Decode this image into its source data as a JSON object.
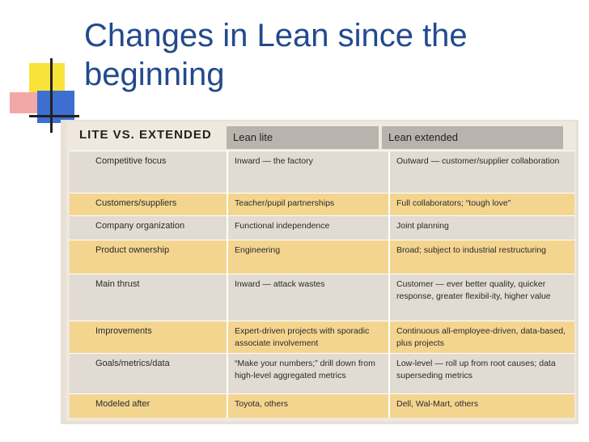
{
  "slide": {
    "title_line1": "Changes in Lean since the",
    "title_line2": "beginning"
  },
  "table": {
    "header": {
      "label": "LITE VS. EXTENDED",
      "col_lite": "Lean lite",
      "col_extended": "Lean extended"
    },
    "rows": [
      {
        "label": "Competitive focus",
        "lite": "Inward — the factory",
        "extended": "Outward — customer/supplier collaboration"
      },
      {
        "label": "Customers/suppliers",
        "lite": "Teacher/pupil partnerships",
        "extended": "Full collaborators; “tough love”"
      },
      {
        "label": "Company organization",
        "lite": "Functional independence",
        "extended": "Joint planning"
      },
      {
        "label": "Product ownership",
        "lite": "Engineering",
        "extended": "Broad; subject to industrial restructuring"
      },
      {
        "label": "Main thrust",
        "lite": "Inward — attack wastes",
        "extended": "Customer — ever better quality, quicker response, greater flexibil-ity, higher value"
      },
      {
        "label": "Improvements",
        "lite": "Expert-driven projects with sporadic associate involvement",
        "extended": "Continuous all-employee-driven, data-based, plus projects"
      },
      {
        "label": "Goals/metrics/data",
        "lite": "“Make your numbers;” drill down from high-level aggregated metrics",
        "extended": "Low-level — roll up from root causes; data superseding metrics"
      },
      {
        "label": "Modeled after",
        "lite": "Toyota, others",
        "extended": "Dell, Wal-Mart, others"
      }
    ]
  }
}
